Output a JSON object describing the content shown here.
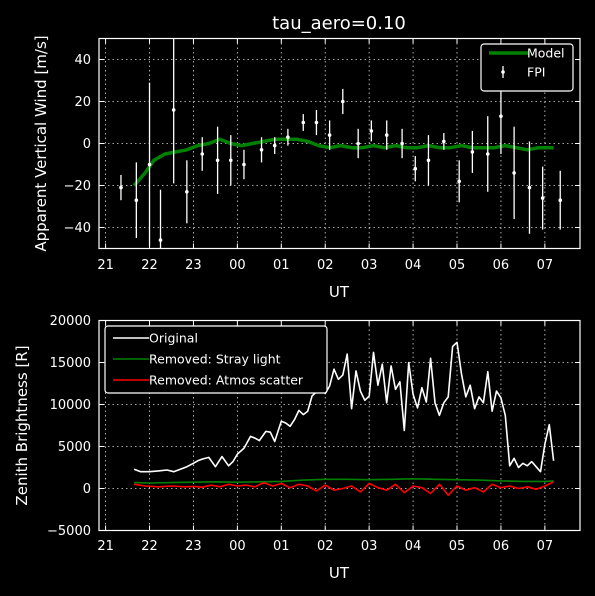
{
  "chart_data": [
    {
      "type": "line",
      "title": "tau_aero=0.10",
      "xlabel": "UT",
      "ylabel": "Apparent Vertical Wind [m/s]",
      "x_ticks": [
        21,
        22,
        23,
        24,
        25,
        26,
        27,
        28,
        29,
        30,
        31
      ],
      "x_tick_labels": [
        "21",
        "22",
        "23",
        "00",
        "01",
        "02",
        "03",
        "04",
        "05",
        "06",
        "07"
      ],
      "xlim": [
        20.85,
        31.8
      ],
      "ylim": [
        -50,
        50
      ],
      "y_ticks": [
        -40,
        -20,
        0,
        20,
        40
      ],
      "y_tick_labels": [
        "−40",
        "−20",
        "0",
        "20",
        "40"
      ],
      "grid": true,
      "legend_position": "top-right",
      "legend": [
        "Model",
        "FPI"
      ],
      "series": [
        {
          "name": "Model",
          "kind": "line",
          "color": "#008000",
          "x": [
            21.65,
            21.9,
            22.1,
            22.35,
            22.6,
            22.85,
            23.1,
            23.35,
            23.6,
            23.85,
            24.1,
            24.35,
            24.6,
            24.85,
            25.1,
            25.35,
            25.6,
            25.85,
            26.1,
            26.35,
            26.6,
            26.85,
            27.1,
            27.35,
            27.6,
            27.85,
            28.1,
            28.35,
            28.6,
            28.85,
            29.1,
            29.35,
            29.6,
            29.85,
            30.1,
            30.35,
            30.6,
            30.85,
            31.1,
            31.2
          ],
          "y": [
            -20,
            -14,
            -8,
            -5,
            -4,
            -3,
            -1,
            0,
            2,
            0,
            -1,
            0,
            1,
            2,
            2,
            2,
            1,
            -1,
            -2,
            -1,
            -2,
            -2,
            -1,
            -2,
            -1,
            -2,
            -2,
            -1,
            -2,
            -2,
            -1,
            -2,
            -2,
            -2,
            -1,
            -2,
            -3,
            -2,
            -2,
            -2
          ]
        },
        {
          "name": "FPI",
          "kind": "errorbar",
          "color": "#ffffff",
          "x": [
            21.35,
            21.7,
            22.0,
            22.25,
            22.55,
            22.85,
            23.2,
            23.55,
            23.85,
            24.15,
            24.55,
            24.85,
            25.15,
            25.5,
            25.8,
            26.1,
            26.4,
            26.75,
            27.05,
            27.4,
            27.75,
            28.05,
            28.35,
            28.7,
            29.05,
            29.35,
            29.7,
            30.0,
            30.3,
            30.65,
            30.95,
            31.35
          ],
          "y": [
            -21,
            -27,
            -10,
            -46,
            16,
            -23,
            -5,
            -8,
            -8,
            -10,
            -3,
            -1,
            3,
            10,
            10,
            4,
            20,
            0,
            6,
            4,
            0,
            -12,
            -8,
            1,
            -18,
            -4,
            -5,
            13,
            -14,
            -21,
            -26,
            -27
          ],
          "err": [
            6,
            18,
            39,
            24,
            35,
            15,
            8,
            16,
            12,
            7,
            6,
            4,
            4,
            4,
            6,
            7,
            6,
            7,
            5,
            7,
            7,
            6,
            12,
            4,
            10,
            10,
            18,
            18,
            22,
            22,
            15,
            14
          ]
        }
      ]
    },
    {
      "type": "line",
      "title": "",
      "xlabel": "UT",
      "ylabel": "Zenith Brightness [R]",
      "x_ticks": [
        21,
        22,
        23,
        24,
        25,
        26,
        27,
        28,
        29,
        30,
        31
      ],
      "x_tick_labels": [
        "21",
        "22",
        "23",
        "00",
        "01",
        "02",
        "03",
        "04",
        "05",
        "06",
        "07"
      ],
      "xlim": [
        20.85,
        31.8
      ],
      "ylim": [
        -5000,
        20000
      ],
      "y_ticks": [
        -5000,
        0,
        5000,
        10000,
        15000,
        20000
      ],
      "y_tick_labels": [
        "−5000",
        "0",
        "5000",
        "10000",
        "15000",
        "20000"
      ],
      "grid": true,
      "legend_position": "top-left",
      "legend": [
        "Original",
        "Removed: Stray light",
        "Removed: Atmos scatter"
      ],
      "series": [
        {
          "name": "Original",
          "kind": "line",
          "color": "#ffffff",
          "x": [
            21.65,
            21.8,
            22.0,
            22.2,
            22.4,
            22.55,
            22.7,
            22.85,
            23.0,
            23.1,
            23.2,
            23.35,
            23.5,
            23.65,
            23.8,
            23.9,
            24.0,
            24.15,
            24.3,
            24.4,
            24.5,
            24.65,
            24.75,
            24.85,
            25.0,
            25.1,
            25.2,
            25.3,
            25.4,
            25.5,
            25.6,
            25.7,
            25.8,
            25.9,
            26.0,
            26.1,
            26.2,
            26.3,
            26.4,
            26.5,
            26.6,
            26.7,
            26.8,
            26.9,
            27.0,
            27.1,
            27.2,
            27.3,
            27.4,
            27.5,
            27.6,
            27.7,
            27.8,
            27.9,
            28.0,
            28.1,
            28.2,
            28.3,
            28.4,
            28.5,
            28.6,
            28.7,
            28.8,
            28.9,
            29.0,
            29.1,
            29.2,
            29.3,
            29.4,
            29.5,
            29.6,
            29.7,
            29.8,
            29.9,
            30.0,
            30.1,
            30.2,
            30.3,
            30.4,
            30.5,
            30.6,
            30.7,
            30.8,
            30.9,
            31.0,
            31.1,
            31.2
          ],
          "y": [
            2300,
            2000,
            2000,
            2100,
            2200,
            2000,
            2300,
            2600,
            3000,
            3300,
            3500,
            3700,
            2600,
            3800,
            2700,
            3200,
            4100,
            4800,
            6200,
            6000,
            5700,
            6800,
            6700,
            5600,
            8000,
            7800,
            7400,
            8200,
            9300,
            8800,
            9200,
            11000,
            11500,
            14000,
            11300,
            12200,
            14200,
            13000,
            13500,
            16000,
            9500,
            14000,
            11600,
            10500,
            11000,
            16200,
            12300,
            14800,
            10200,
            14600,
            11800,
            12700,
            6900,
            15000,
            11200,
            9600,
            12000,
            10300,
            15500,
            10200,
            8700,
            10200,
            10900,
            16900,
            17400,
            13700,
            10900,
            12300,
            9500,
            10900,
            10200,
            13900,
            9200,
            11600,
            10800,
            8700,
            2700,
            3600,
            2500,
            3000,
            2700,
            3200,
            2600,
            2000,
            5300,
            7600,
            3300
          ]
        },
        {
          "name": "Removed: Stray light",
          "kind": "line",
          "color": "#008000",
          "x": [
            21.65,
            22.0,
            22.5,
            23.0,
            23.5,
            24.0,
            24.5,
            25.0,
            25.5,
            26.0,
            26.5,
            27.0,
            27.5,
            28.0,
            28.5,
            29.0,
            29.5,
            30.0,
            30.5,
            31.0,
            31.2
          ],
          "y": [
            700,
            650,
            700,
            750,
            800,
            750,
            800,
            850,
            1000,
            1100,
            1100,
            1050,
            1100,
            1150,
            1100,
            1050,
            1000,
            900,
            850,
            850,
            900
          ]
        },
        {
          "name": "Removed: Atmos scatter",
          "kind": "line",
          "color": "#ff0000",
          "x": [
            21.65,
            21.9,
            22.2,
            22.5,
            22.8,
            23.0,
            23.2,
            23.4,
            23.6,
            23.8,
            24.0,
            24.2,
            24.4,
            24.6,
            24.8,
            25.0,
            25.2,
            25.4,
            25.6,
            25.8,
            26.0,
            26.2,
            26.4,
            26.6,
            26.8,
            27.0,
            27.2,
            27.4,
            27.6,
            27.8,
            28.0,
            28.2,
            28.4,
            28.6,
            28.8,
            29.0,
            29.2,
            29.4,
            29.6,
            29.8,
            30.0,
            30.2,
            30.4,
            30.6,
            30.8,
            31.0,
            31.2
          ],
          "y": [
            500,
            300,
            200,
            300,
            200,
            250,
            150,
            400,
            200,
            500,
            300,
            400,
            200,
            700,
            300,
            600,
            100,
            500,
            300,
            -300,
            400,
            -200,
            0,
            300,
            -400,
            600,
            100,
            -200,
            500,
            -500,
            300,
            100,
            -600,
            500,
            -800,
            300,
            -200,
            100,
            -400,
            500,
            100,
            300,
            0,
            200,
            -100,
            300,
            800
          ]
        }
      ]
    }
  ]
}
